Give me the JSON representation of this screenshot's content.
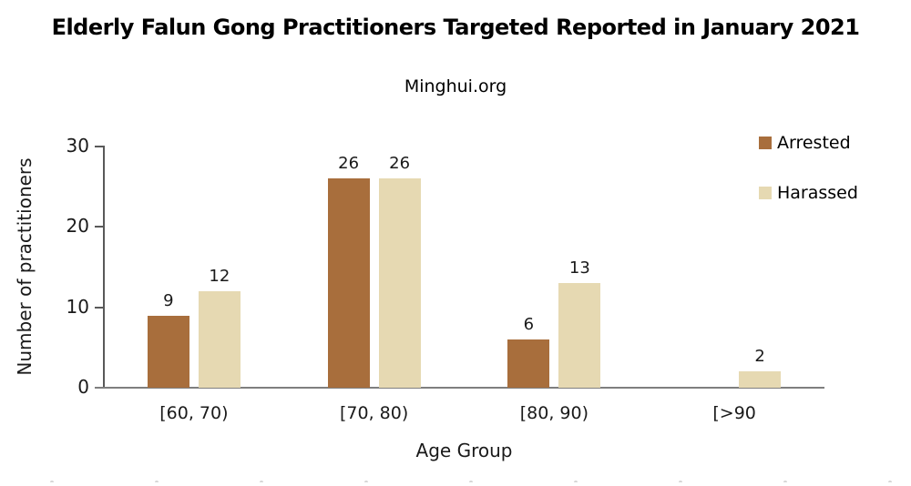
{
  "chart_data": {
    "type": "bar",
    "title": "Elderly Falun Gong Practitioners Targeted Reported in January 2021",
    "subtitle": "Minghui.org",
    "categories": [
      "[60, 70)",
      "[70, 80)",
      "[80, 90)",
      "[>90"
    ],
    "series": [
      {
        "name": "Arrested",
        "color": "#A86E3C",
        "values": [
          9,
          26,
          6,
          0
        ]
      },
      {
        "name": "Harassed",
        "color": "#E6D9B2",
        "values": [
          12,
          26,
          13,
          2
        ]
      }
    ],
    "xlabel": "Age Group",
    "ylabel": "Number of practitioners",
    "ylim": [
      0,
      30
    ],
    "yticks": [
      0,
      10,
      20,
      30
    ],
    "grid": false,
    "legend_position": "top-right",
    "bar_value_labels": true,
    "axis_color": "#7f7f7f",
    "text_color": "#1a1a1a"
  }
}
